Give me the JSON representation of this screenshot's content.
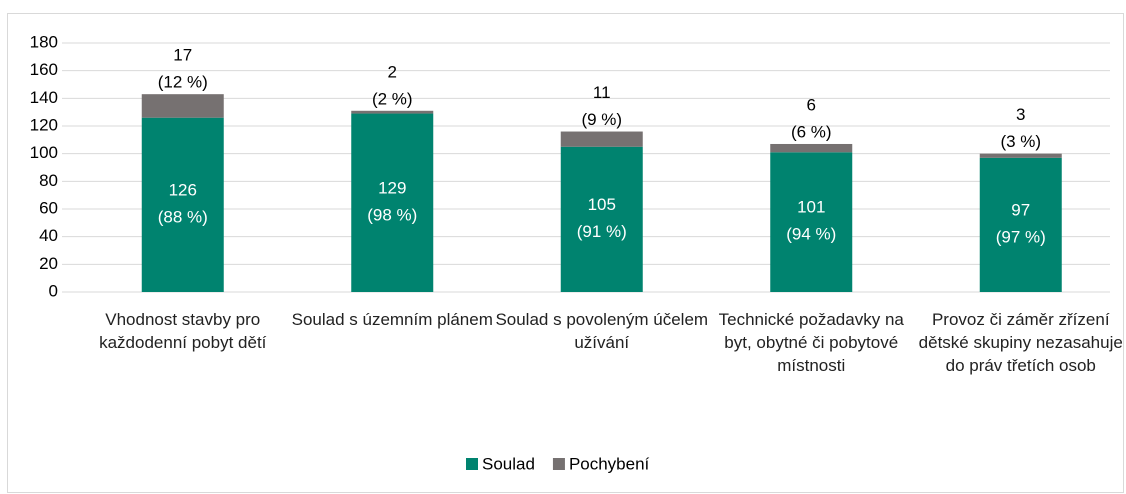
{
  "chart_data": {
    "type": "stacked-bar",
    "categories": [
      "Vhodnost stavby pro každodenní pobyt dětí",
      "Soulad s územním plánem",
      "Soulad s povoleným účelem užívání",
      "Technické požadavky na byt, obytné či pobytové místnosti",
      "Provoz či záměr zřízení dětské skupiny nezasahuje do práv třetích osob"
    ],
    "series": [
      {
        "name": "Soulad",
        "color": "#00836f",
        "values": [
          126,
          129,
          105,
          101,
          97
        ],
        "value_labels": [
          "126\n(88 %)",
          "129\n(98 %)",
          "105\n(91 %)",
          "101\n(94 %)",
          "97\n(97 %)"
        ]
      },
      {
        "name": "Pochybení",
        "color": "#767171",
        "values": [
          17,
          2,
          11,
          6,
          3
        ],
        "value_labels": [
          "17\n(12 %)",
          "2\n(2 %)",
          "11\n(9 %)",
          "6\n(6 %)",
          "3\n(3 %)"
        ]
      }
    ],
    "ylim": [
      0,
      180
    ],
    "yticks": [
      0,
      20,
      40,
      60,
      80,
      100,
      120,
      140,
      160,
      180
    ],
    "grid": true,
    "legend": "bottom"
  }
}
